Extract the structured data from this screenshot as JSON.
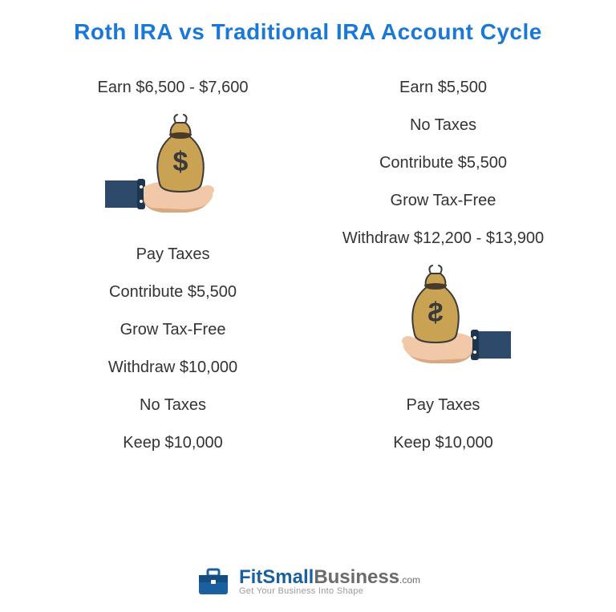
{
  "title": "Roth IRA vs Traditional IRA Account Cycle",
  "title_color": "#1a78d6",
  "text_color": "#333333",
  "background": "#ffffff",
  "left": {
    "steps": [
      "Earn $6,500 - $7,600",
      "Pay Taxes",
      "Contribute $5,500",
      "Grow Tax-Free",
      "Withdraw $10,000",
      "No Taxes",
      "Keep $10,000"
    ],
    "icon_after_index": 0
  },
  "right": {
    "steps": [
      "Earn $5,500",
      "No Taxes",
      "Contribute $5,500",
      "Grow Tax-Free",
      "Withdraw $12,200 - $13,900",
      "Pay Taxes",
      "Keep $10,000"
    ],
    "icon_after_index": 4
  },
  "icon": {
    "bag_fill": "#c9a254",
    "bag_stroke": "#3a3a3a",
    "bag_tie": "#4a3a2a",
    "sleeve": "#2d4a6a",
    "cuff": "#1e3550",
    "skin": "#f1c9a8",
    "skin_shadow": "#d9a880"
  },
  "footer": {
    "brand1": "FitSmall",
    "brand2": "Business",
    "suffix": ".com",
    "tagline": "Get Your Business Into Shape",
    "brand1_color": "#1a5f9e",
    "brand2_color": "#6b6b6b",
    "icon_color": "#1a5f9e"
  }
}
